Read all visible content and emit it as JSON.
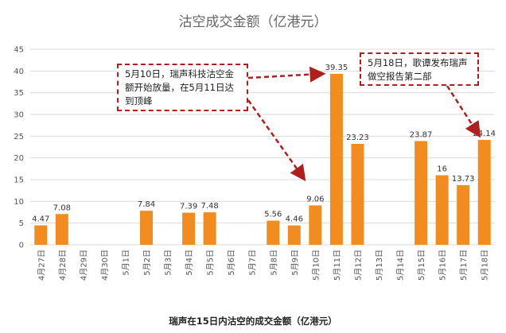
{
  "chart_data": {
    "type": "bar",
    "title": "沽空成交金额（亿港元）",
    "categories": [
      "4月27日",
      "4月28日",
      "4月29日",
      "4月30日",
      "5月1日",
      "5月2日",
      "5月3日",
      "5月4日",
      "5月5日",
      "5月6日",
      "5月7日",
      "5月8日",
      "5月9日",
      "5月10日",
      "5月11日",
      "5月12日",
      "5月13日",
      "5月14日",
      "5月15日",
      "5月16日",
      "5月17日",
      "5月18日"
    ],
    "values": [
      4.47,
      7.08,
      null,
      null,
      null,
      7.84,
      null,
      7.39,
      7.48,
      null,
      null,
      5.56,
      4.46,
      9.06,
      39.35,
      23.23,
      null,
      null,
      23.87,
      16,
      13.73,
      24.14
    ],
    "value_labels": [
      "4.47",
      "7.08",
      "",
      "",
      "",
      "7.84",
      "",
      "7.39",
      "7.48",
      "",
      "",
      "5.56",
      "4.46",
      "9.06",
      "39.35",
      "23.23",
      "",
      "",
      "23.87",
      "16",
      "13.73",
      "24.14"
    ],
    "yticks": [
      "0",
      "5",
      "10",
      "15",
      "20",
      "25",
      "30",
      "35",
      "40",
      "45"
    ],
    "ylim": [
      0,
      45
    ],
    "bar_color": "#f28c1e",
    "grid": true,
    "xlabel": "",
    "ylabel": "",
    "annotations": [
      {
        "text": "5月10日，瑞声科技沽空金额开始放量，在5月11日达到顶峰",
        "target": "5月10日"
      },
      {
        "text": "5月18日，歌谭发布瑞声做空报告第二部",
        "target": "5月18日"
      }
    ]
  },
  "caption": "瑞声在15日内沽空的成交金额（亿港元）"
}
